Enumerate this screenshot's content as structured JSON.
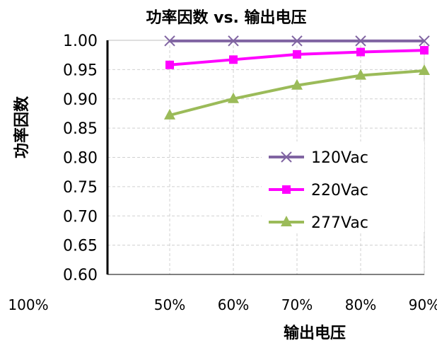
{
  "chart_data": {
    "type": "line",
    "title": "功率因数 vs. 输出电压",
    "xlabel": "输出电压",
    "ylabel": "功率因数",
    "x_tick_labels": [
      "100%",
      "50%",
      "60%",
      "70%",
      "80%",
      "90%"
    ],
    "x_values": [
      50,
      60,
      70,
      80,
      90
    ],
    "y_tick_labels": [
      "1.00",
      "0.95",
      "0.90",
      "0.85",
      "0.80",
      "0.75",
      "0.70",
      "0.65",
      "0.60"
    ],
    "ylim": [
      0.6,
      1.0
    ],
    "grid": true,
    "legend_position": "right",
    "series": [
      {
        "name": "120Vac",
        "color": "#8064a2",
        "marker": "x",
        "values": [
          0.999,
          0.999,
          0.999,
          0.999,
          0.999
        ]
      },
      {
        "name": "220Vac",
        "color": "#ff00ff",
        "marker": "square",
        "values": [
          0.958,
          0.967,
          0.976,
          0.98,
          0.983
        ]
      },
      {
        "name": "277Vac",
        "color": "#9bbb59",
        "marker": "triangle",
        "values": [
          0.872,
          0.9,
          0.923,
          0.94,
          0.948
        ]
      }
    ]
  }
}
